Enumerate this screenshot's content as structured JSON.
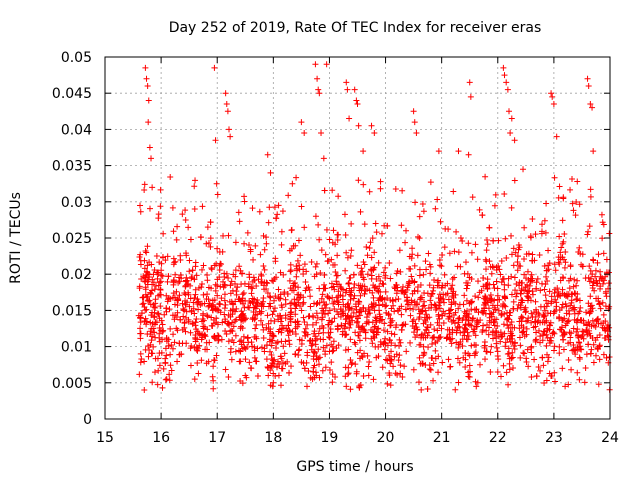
{
  "chart_data": {
    "type": "scatter",
    "title": "Day 252 of 2019, Rate Of TEC Index for receiver eras",
    "xlabel": "GPS time / hours",
    "ylabel": "ROTI / TECUs",
    "xlim": [
      15,
      24
    ],
    "ylim": [
      0,
      0.05
    ],
    "grid": true,
    "marker": "plus",
    "x_ticks": [
      15,
      16,
      17,
      18,
      19,
      20,
      21,
      22,
      23,
      24
    ],
    "x_tick_labels": [
      "15",
      "16",
      "17",
      "18",
      "19",
      "20",
      "21",
      "22",
      "23",
      "24"
    ],
    "y_ticks": [
      0,
      0.005,
      0.01,
      0.015,
      0.02,
      0.025,
      0.03,
      0.035,
      0.04,
      0.045,
      0.05
    ],
    "y_tick_labels": [
      "0",
      "0.005",
      "0.01",
      "0.015",
      "0.02",
      "0.025",
      "0.03",
      "0.035",
      "0.04",
      "0.045",
      "0.05"
    ],
    "series": [
      {
        "name": "ROTI",
        "color": "#ff0000",
        "x_range": [
          15.6,
          24.0
        ],
        "typical_band": [
          0.007,
          0.025
        ],
        "min_value": 0.004,
        "max_value": 0.049,
        "sample_count": 2600,
        "high_outliers": [
          {
            "x": 15.72,
            "y": 0.0485
          },
          {
            "x": 15.74,
            "y": 0.047
          },
          {
            "x": 15.76,
            "y": 0.046
          },
          {
            "x": 15.78,
            "y": 0.044
          },
          {
            "x": 15.77,
            "y": 0.041
          },
          {
            "x": 15.8,
            "y": 0.0375
          },
          {
            "x": 15.82,
            "y": 0.036
          },
          {
            "x": 15.84,
            "y": 0.032
          },
          {
            "x": 16.6,
            "y": 0.029
          },
          {
            "x": 16.95,
            "y": 0.0485
          },
          {
            "x": 16.97,
            "y": 0.0385
          },
          {
            "x": 16.99,
            "y": 0.0325
          },
          {
            "x": 17.15,
            "y": 0.045
          },
          {
            "x": 17.17,
            "y": 0.0435
          },
          {
            "x": 17.19,
            "y": 0.0425
          },
          {
            "x": 17.21,
            "y": 0.04
          },
          {
            "x": 17.23,
            "y": 0.039
          },
          {
            "x": 17.9,
            "y": 0.0365
          },
          {
            "x": 17.95,
            "y": 0.034
          },
          {
            "x": 18.5,
            "y": 0.041
          },
          {
            "x": 18.55,
            "y": 0.0395
          },
          {
            "x": 18.75,
            "y": 0.049
          },
          {
            "x": 18.78,
            "y": 0.047
          },
          {
            "x": 18.8,
            "y": 0.0455
          },
          {
            "x": 18.82,
            "y": 0.045
          },
          {
            "x": 18.85,
            "y": 0.0395
          },
          {
            "x": 18.9,
            "y": 0.036
          },
          {
            "x": 18.95,
            "y": 0.049
          },
          {
            "x": 19.3,
            "y": 0.0465
          },
          {
            "x": 19.32,
            "y": 0.0455
          },
          {
            "x": 19.35,
            "y": 0.0415
          },
          {
            "x": 19.45,
            "y": 0.0455
          },
          {
            "x": 19.48,
            "y": 0.044
          },
          {
            "x": 19.5,
            "y": 0.0435
          },
          {
            "x": 19.52,
            "y": 0.0405
          },
          {
            "x": 19.6,
            "y": 0.037
          },
          {
            "x": 19.75,
            "y": 0.0405
          },
          {
            "x": 19.8,
            "y": 0.0395
          },
          {
            "x": 20.5,
            "y": 0.0425
          },
          {
            "x": 20.52,
            "y": 0.041
          },
          {
            "x": 20.55,
            "y": 0.0395
          },
          {
            "x": 20.95,
            "y": 0.037
          },
          {
            "x": 21.3,
            "y": 0.037
          },
          {
            "x": 21.5,
            "y": 0.0465
          },
          {
            "x": 21.52,
            "y": 0.0445
          },
          {
            "x": 21.48,
            "y": 0.0365
          },
          {
            "x": 22.1,
            "y": 0.0485
          },
          {
            "x": 22.12,
            "y": 0.0475
          },
          {
            "x": 22.15,
            "y": 0.0465
          },
          {
            "x": 22.18,
            "y": 0.0455
          },
          {
            "x": 22.2,
            "y": 0.0425
          },
          {
            "x": 22.22,
            "y": 0.0395
          },
          {
            "x": 22.25,
            "y": 0.0415
          },
          {
            "x": 22.3,
            "y": 0.0385
          },
          {
            "x": 22.45,
            "y": 0.0345
          },
          {
            "x": 22.95,
            "y": 0.045
          },
          {
            "x": 22.97,
            "y": 0.0445
          },
          {
            "x": 23.0,
            "y": 0.0435
          },
          {
            "x": 23.05,
            "y": 0.039
          },
          {
            "x": 23.6,
            "y": 0.047
          },
          {
            "x": 23.62,
            "y": 0.046
          },
          {
            "x": 23.65,
            "y": 0.0435
          },
          {
            "x": 23.68,
            "y": 0.043
          },
          {
            "x": 23.7,
            "y": 0.037
          }
        ],
        "low_outliers": [
          {
            "x": 15.7,
            "y": 0.004
          },
          {
            "x": 16.1,
            "y": 0.0055
          },
          {
            "x": 16.6,
            "y": 0.0055
          },
          {
            "x": 17.2,
            "y": 0.0058
          },
          {
            "x": 17.5,
            "y": 0.006
          },
          {
            "x": 18.0,
            "y": 0.005
          },
          {
            "x": 18.1,
            "y": 0.006
          },
          {
            "x": 18.6,
            "y": 0.0045
          },
          {
            "x": 18.7,
            "y": 0.0055
          },
          {
            "x": 19.1,
            "y": 0.0058
          },
          {
            "x": 19.3,
            "y": 0.0045
          },
          {
            "x": 19.7,
            "y": 0.006
          },
          {
            "x": 20.3,
            "y": 0.0058
          },
          {
            "x": 21.5,
            "y": 0.0058
          },
          {
            "x": 22.0,
            "y": 0.0065
          },
          {
            "x": 22.6,
            "y": 0.0058
          },
          {
            "x": 23.2,
            "y": 0.0045
          },
          {
            "x": 23.8,
            "y": 0.0048
          }
        ]
      }
    ]
  }
}
